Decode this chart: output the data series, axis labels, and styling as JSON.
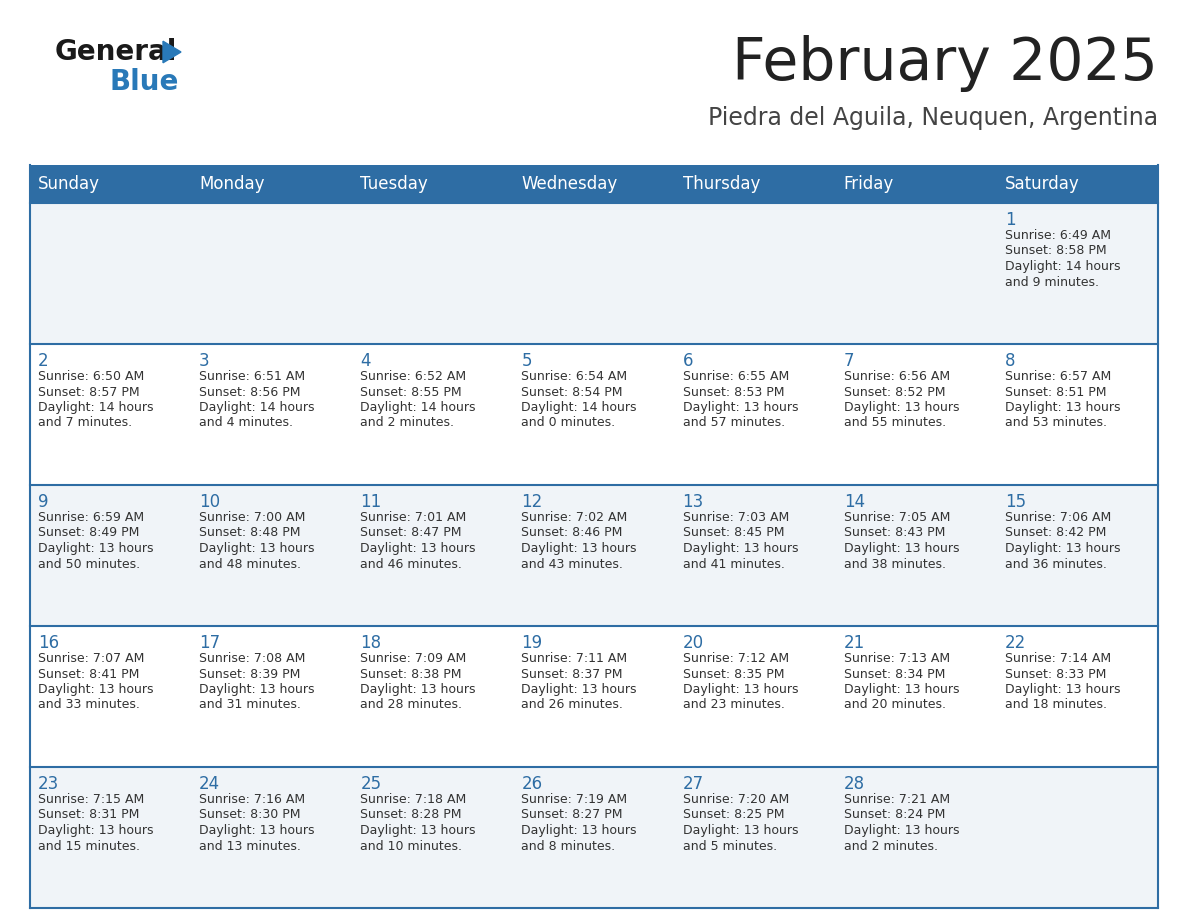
{
  "title": "February 2025",
  "subtitle": "Piedra del Aguila, Neuquen, Argentina",
  "days_of_week": [
    "Sunday",
    "Monday",
    "Tuesday",
    "Wednesday",
    "Thursday",
    "Friday",
    "Saturday"
  ],
  "header_bg": "#2e6da4",
  "header_text_color": "#ffffff",
  "cell_bg_odd": "#f0f4f8",
  "cell_bg_even": "#ffffff",
  "row_border_color": "#2e6da4",
  "day_number_color": "#2e6da4",
  "text_color": "#333333",
  "logo_general_color": "#1a1a1a",
  "logo_blue_color": "#2979b8",
  "title_color": "#222222",
  "subtitle_color": "#444444",
  "calendar_data": [
    {
      "day": 1,
      "row": 0,
      "col": 6,
      "sunrise": "6:49 AM",
      "sunset": "8:58 PM",
      "daylight_hours": 14,
      "daylight_minutes": 9
    },
    {
      "day": 2,
      "row": 1,
      "col": 0,
      "sunrise": "6:50 AM",
      "sunset": "8:57 PM",
      "daylight_hours": 14,
      "daylight_minutes": 7
    },
    {
      "day": 3,
      "row": 1,
      "col": 1,
      "sunrise": "6:51 AM",
      "sunset": "8:56 PM",
      "daylight_hours": 14,
      "daylight_minutes": 4
    },
    {
      "day": 4,
      "row": 1,
      "col": 2,
      "sunrise": "6:52 AM",
      "sunset": "8:55 PM",
      "daylight_hours": 14,
      "daylight_minutes": 2
    },
    {
      "day": 5,
      "row": 1,
      "col": 3,
      "sunrise": "6:54 AM",
      "sunset": "8:54 PM",
      "daylight_hours": 14,
      "daylight_minutes": 0
    },
    {
      "day": 6,
      "row": 1,
      "col": 4,
      "sunrise": "6:55 AM",
      "sunset": "8:53 PM",
      "daylight_hours": 13,
      "daylight_minutes": 57
    },
    {
      "day": 7,
      "row": 1,
      "col": 5,
      "sunrise": "6:56 AM",
      "sunset": "8:52 PM",
      "daylight_hours": 13,
      "daylight_minutes": 55
    },
    {
      "day": 8,
      "row": 1,
      "col": 6,
      "sunrise": "6:57 AM",
      "sunset": "8:51 PM",
      "daylight_hours": 13,
      "daylight_minutes": 53
    },
    {
      "day": 9,
      "row": 2,
      "col": 0,
      "sunrise": "6:59 AM",
      "sunset": "8:49 PM",
      "daylight_hours": 13,
      "daylight_minutes": 50
    },
    {
      "day": 10,
      "row": 2,
      "col": 1,
      "sunrise": "7:00 AM",
      "sunset": "8:48 PM",
      "daylight_hours": 13,
      "daylight_minutes": 48
    },
    {
      "day": 11,
      "row": 2,
      "col": 2,
      "sunrise": "7:01 AM",
      "sunset": "8:47 PM",
      "daylight_hours": 13,
      "daylight_minutes": 46
    },
    {
      "day": 12,
      "row": 2,
      "col": 3,
      "sunrise": "7:02 AM",
      "sunset": "8:46 PM",
      "daylight_hours": 13,
      "daylight_minutes": 43
    },
    {
      "day": 13,
      "row": 2,
      "col": 4,
      "sunrise": "7:03 AM",
      "sunset": "8:45 PM",
      "daylight_hours": 13,
      "daylight_minutes": 41
    },
    {
      "day": 14,
      "row": 2,
      "col": 5,
      "sunrise": "7:05 AM",
      "sunset": "8:43 PM",
      "daylight_hours": 13,
      "daylight_minutes": 38
    },
    {
      "day": 15,
      "row": 2,
      "col": 6,
      "sunrise": "7:06 AM",
      "sunset": "8:42 PM",
      "daylight_hours": 13,
      "daylight_minutes": 36
    },
    {
      "day": 16,
      "row": 3,
      "col": 0,
      "sunrise": "7:07 AM",
      "sunset": "8:41 PM",
      "daylight_hours": 13,
      "daylight_minutes": 33
    },
    {
      "day": 17,
      "row": 3,
      "col": 1,
      "sunrise": "7:08 AM",
      "sunset": "8:39 PM",
      "daylight_hours": 13,
      "daylight_minutes": 31
    },
    {
      "day": 18,
      "row": 3,
      "col": 2,
      "sunrise": "7:09 AM",
      "sunset": "8:38 PM",
      "daylight_hours": 13,
      "daylight_minutes": 28
    },
    {
      "day": 19,
      "row": 3,
      "col": 3,
      "sunrise": "7:11 AM",
      "sunset": "8:37 PM",
      "daylight_hours": 13,
      "daylight_minutes": 26
    },
    {
      "day": 20,
      "row": 3,
      "col": 4,
      "sunrise": "7:12 AM",
      "sunset": "8:35 PM",
      "daylight_hours": 13,
      "daylight_minutes": 23
    },
    {
      "day": 21,
      "row": 3,
      "col": 5,
      "sunrise": "7:13 AM",
      "sunset": "8:34 PM",
      "daylight_hours": 13,
      "daylight_minutes": 20
    },
    {
      "day": 22,
      "row": 3,
      "col": 6,
      "sunrise": "7:14 AM",
      "sunset": "8:33 PM",
      "daylight_hours": 13,
      "daylight_minutes": 18
    },
    {
      "day": 23,
      "row": 4,
      "col": 0,
      "sunrise": "7:15 AM",
      "sunset": "8:31 PM",
      "daylight_hours": 13,
      "daylight_minutes": 15
    },
    {
      "day": 24,
      "row": 4,
      "col": 1,
      "sunrise": "7:16 AM",
      "sunset": "8:30 PM",
      "daylight_hours": 13,
      "daylight_minutes": 13
    },
    {
      "day": 25,
      "row": 4,
      "col": 2,
      "sunrise": "7:18 AM",
      "sunset": "8:28 PM",
      "daylight_hours": 13,
      "daylight_minutes": 10
    },
    {
      "day": 26,
      "row": 4,
      "col": 3,
      "sunrise": "7:19 AM",
      "sunset": "8:27 PM",
      "daylight_hours": 13,
      "daylight_minutes": 8
    },
    {
      "day": 27,
      "row": 4,
      "col": 4,
      "sunrise": "7:20 AM",
      "sunset": "8:25 PM",
      "daylight_hours": 13,
      "daylight_minutes": 5
    },
    {
      "day": 28,
      "row": 4,
      "col": 5,
      "sunrise": "7:21 AM",
      "sunset": "8:24 PM",
      "daylight_hours": 13,
      "daylight_minutes": 2
    }
  ]
}
